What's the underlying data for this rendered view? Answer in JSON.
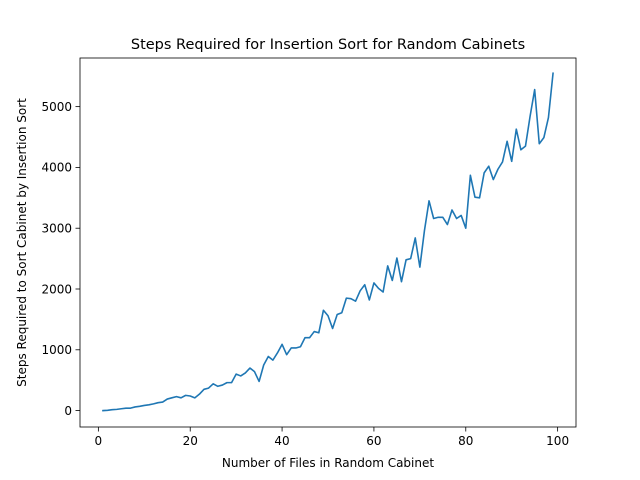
{
  "chart_data": {
    "type": "line",
    "title": "Steps Required for Insertion Sort for Random Cabinets",
    "xlabel": "Number of Files in Random Cabinet",
    "ylabel": "Steps Required to Sort Cabinet by Insertion Sort",
    "xlim": [
      -4,
      104
    ],
    "ylim": [
      -270,
      5800
    ],
    "xticks": [
      0,
      20,
      40,
      60,
      80,
      100
    ],
    "yticks": [
      0,
      1000,
      2000,
      3000,
      4000,
      5000
    ],
    "grid": false,
    "legend": "none",
    "color": "#1f77b4",
    "series": [
      {
        "x": [
          1,
          2,
          3,
          4,
          5,
          6,
          7,
          8,
          9,
          10,
          11,
          12,
          13,
          14,
          15,
          16,
          17,
          18,
          19,
          20,
          21,
          22,
          23,
          24,
          25,
          26,
          27,
          28,
          29,
          30,
          31,
          32,
          33,
          34,
          35,
          36,
          37,
          38,
          39,
          40,
          41,
          42,
          43,
          44,
          45,
          46,
          47,
          48,
          49,
          50,
          51,
          52,
          53,
          54,
          55,
          56,
          57,
          58,
          59,
          60,
          61,
          62,
          63,
          64,
          65,
          66,
          67,
          68,
          69,
          70,
          71,
          72,
          73,
          74,
          75,
          76,
          77,
          78,
          79,
          80,
          81,
          82,
          83,
          84,
          85,
          86,
          87,
          88,
          89,
          90,
          91,
          92,
          93,
          94,
          95,
          96,
          97,
          98,
          99
        ],
        "values": [
          0,
          5,
          15,
          20,
          30,
          40,
          40,
          60,
          70,
          85,
          95,
          110,
          130,
          140,
          190,
          210,
          230,
          210,
          250,
          240,
          210,
          270,
          350,
          370,
          440,
          400,
          420,
          460,
          460,
          600,
          570,
          620,
          700,
          640,
          480,
          750,
          890,
          830,
          950,
          1090,
          920,
          1030,
          1030,
          1050,
          1200,
          1200,
          1300,
          1280,
          1650,
          1560,
          1350,
          1580,
          1610,
          1850,
          1840,
          1800,
          1970,
          2070,
          1820,
          2100,
          2010,
          1950,
          2380,
          2140,
          2510,
          2120,
          2480,
          2500,
          2840,
          2360,
          2960,
          3450,
          3160,
          3180,
          3180,
          3060,
          3300,
          3160,
          3210,
          3000,
          3870,
          3510,
          3500,
          3910,
          4020,
          3800,
          3970,
          4090,
          4430,
          4100,
          4630,
          4290,
          4350,
          4840,
          5280,
          4390,
          4490,
          4820,
          5550
        ]
      }
    ]
  }
}
